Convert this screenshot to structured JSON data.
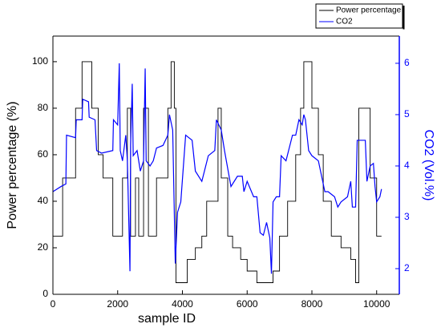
{
  "chart_data": {
    "type": "line",
    "xlabel": "sample ID",
    "ylabel": "Power percentage (%)",
    "y2label": "CO2 (Vol.%)",
    "xlim": [
      0,
      10700
    ],
    "xticks": [
      0,
      2000,
      4000,
      6000,
      8000,
      10000
    ],
    "ylim": [
      0,
      111
    ],
    "yticks": [
      0,
      20,
      40,
      60,
      80,
      100
    ],
    "y2lim": [
      1.5,
      6.53
    ],
    "y2ticks": [
      2,
      3,
      4,
      5,
      6
    ],
    "legend": "upper right",
    "series": [
      {
        "name": "Power percentage",
        "color": "#000000",
        "drawstyle": "steps-post",
        "x": [
          0,
          300,
          700,
          900,
          1200,
          1400,
          1550,
          1850,
          2150,
          2300,
          2400,
          2550,
          2650,
          2800,
          2950,
          3200,
          3550,
          3650,
          3750,
          3800,
          4150,
          4400,
          4600,
          4750,
          5100,
          5200,
          5400,
          5550,
          5800,
          6000,
          6300,
          6800,
          7000,
          7250,
          7500,
          7650,
          7750,
          8000,
          8200,
          8350,
          8600,
          8900,
          9200,
          9350,
          9450,
          9800,
          10000,
          10150
        ],
        "values": [
          25,
          50,
          80,
          100,
          80,
          60,
          50,
          25,
          50,
          80,
          25,
          50,
          25,
          80,
          25,
          50,
          80,
          100,
          80,
          5,
          15,
          20,
          25,
          40,
          80,
          50,
          25,
          20,
          15,
          10,
          5,
          10,
          25,
          40,
          60,
          80,
          100,
          80,
          60,
          40,
          25,
          20,
          15,
          5,
          80,
          50,
          25,
          25
        ]
      },
      {
        "name": "CO2",
        "color": "#0000ff",
        "axis": "y2",
        "x": [
          0,
          250,
          400,
          420,
          700,
          720,
          900,
          920,
          1100,
          1120,
          1300,
          1350,
          1500,
          1850,
          1870,
          2000,
          2050,
          2080,
          2150,
          2250,
          2300,
          2380,
          2400,
          2450,
          2480,
          2600,
          2700,
          2800,
          2850,
          2880,
          3000,
          3100,
          3200,
          3400,
          3550,
          3600,
          3700,
          3780,
          3850,
          3950,
          4100,
          4300,
          4400,
          4600,
          4800,
          5000,
          5050,
          5200,
          5300,
          5500,
          5700,
          5850,
          5900,
          6000,
          6200,
          6300,
          6400,
          6500,
          6600,
          6700,
          6750,
          6800,
          6900,
          7000,
          7050,
          7200,
          7400,
          7500,
          7600,
          7700,
          7750,
          7800,
          7900,
          8000,
          8200,
          8400,
          8500,
          8700,
          8800,
          8900,
          9100,
          9200,
          9250,
          9350,
          9400,
          9650,
          9700,
          9800,
          9900,
          9950,
          10000,
          10100,
          10150
        ],
        "values": [
          3.5,
          3.6,
          3.65,
          4.6,
          4.55,
          4.9,
          4.9,
          5.3,
          5.25,
          4.95,
          4.9,
          4.3,
          4.25,
          4.3,
          4.9,
          4.8,
          6.0,
          4.3,
          4.1,
          4.6,
          4.1,
          1.95,
          4.4,
          5.6,
          4.2,
          4.3,
          3.9,
          4.1,
          5.9,
          4.1,
          4.0,
          4.1,
          4.35,
          4.4,
          4.6,
          5.0,
          4.7,
          2.1,
          3.1,
          3.3,
          4.6,
          4.5,
          3.9,
          3.7,
          4.2,
          4.3,
          4.9,
          4.7,
          4.3,
          3.6,
          3.8,
          3.8,
          3.5,
          3.7,
          3.4,
          3.4,
          2.7,
          2.65,
          2.9,
          2.6,
          1.9,
          3.3,
          3.4,
          3.4,
          4.2,
          4.1,
          4.6,
          4.6,
          4.9,
          4.8,
          5.0,
          4.9,
          4.3,
          4.2,
          4.1,
          3.5,
          3.5,
          3.4,
          3.2,
          3.3,
          3.4,
          3.7,
          3.2,
          3.2,
          4.5,
          4.5,
          3.7,
          4.0,
          4.05,
          3.6,
          3.3,
          3.4,
          3.55
        ]
      }
    ]
  }
}
